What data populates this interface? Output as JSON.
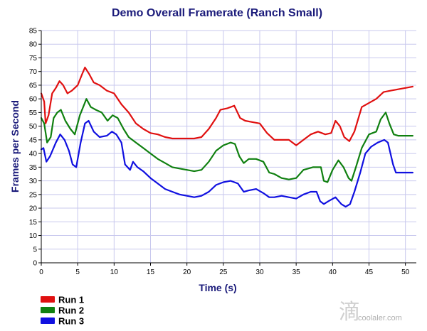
{
  "chart_data": {
    "type": "line",
    "title": "Demo Overall Framerate (Ranch Small)",
    "xlabel": "Time (s)",
    "ylabel": "Frames per Second",
    "xlim": [
      0,
      51.5
    ],
    "ylim": [
      0,
      85
    ],
    "x_ticks": [
      0,
      5,
      10,
      15,
      20,
      25,
      30,
      35,
      40,
      45,
      50
    ],
    "y_ticks": [
      0,
      5,
      10,
      15,
      20,
      25,
      30,
      35,
      40,
      45,
      50,
      55,
      60,
      65,
      70,
      75,
      80,
      85
    ],
    "grid": true,
    "legend_position": "bottom-left",
    "series": [
      {
        "name": "Run 1",
        "color": "#e01010",
        "points": [
          [
            0,
            62
          ],
          [
            0.4,
            59
          ],
          [
            0.6,
            51
          ],
          [
            1,
            54
          ],
          [
            1.5,
            62
          ],
          [
            2,
            64
          ],
          [
            2.5,
            66.5
          ],
          [
            3,
            65
          ],
          [
            3.6,
            62
          ],
          [
            4.2,
            63
          ],
          [
            5,
            65
          ],
          [
            5.6,
            69
          ],
          [
            6,
            71.5
          ],
          [
            6.6,
            69
          ],
          [
            7.2,
            66
          ],
          [
            8,
            65
          ],
          [
            9,
            63
          ],
          [
            10,
            62
          ],
          [
            11,
            58
          ],
          [
            12,
            55
          ],
          [
            13,
            51
          ],
          [
            14,
            49
          ],
          [
            15,
            47.5
          ],
          [
            16,
            47
          ],
          [
            17,
            46
          ],
          [
            18,
            45.5
          ],
          [
            19,
            45.5
          ],
          [
            20,
            45.5
          ],
          [
            21,
            45.5
          ],
          [
            22,
            46
          ],
          [
            23,
            49
          ],
          [
            24,
            53
          ],
          [
            24.6,
            56
          ],
          [
            25.5,
            56.5
          ],
          [
            26.5,
            57.5
          ],
          [
            27.3,
            53
          ],
          [
            28,
            52
          ],
          [
            29,
            51.5
          ],
          [
            30,
            51
          ],
          [
            31,
            47.5
          ],
          [
            32,
            45
          ],
          [
            33,
            45
          ],
          [
            34,
            45
          ],
          [
            35,
            43
          ],
          [
            36,
            45
          ],
          [
            37,
            47
          ],
          [
            38,
            48
          ],
          [
            39,
            47
          ],
          [
            39.8,
            47.5
          ],
          [
            40.4,
            52
          ],
          [
            41,
            50
          ],
          [
            41.6,
            46
          ],
          [
            42.3,
            44.5
          ],
          [
            43,
            48
          ],
          [
            44,
            57
          ],
          [
            45,
            58.5
          ],
          [
            46,
            60
          ],
          [
            47,
            62.5
          ],
          [
            48,
            63
          ],
          [
            49,
            63.5
          ],
          [
            50,
            64
          ],
          [
            51,
            64.5
          ]
        ]
      },
      {
        "name": "Run 2",
        "color": "#108010",
        "points": [
          [
            0,
            53
          ],
          [
            0.4,
            51
          ],
          [
            0.8,
            44
          ],
          [
            1.3,
            46
          ],
          [
            1.7,
            53
          ],
          [
            2.2,
            55
          ],
          [
            2.7,
            56
          ],
          [
            3.3,
            52
          ],
          [
            4,
            49
          ],
          [
            4.6,
            47
          ],
          [
            5.3,
            54
          ],
          [
            5.9,
            58
          ],
          [
            6.2,
            60
          ],
          [
            6.8,
            57
          ],
          [
            7.5,
            56
          ],
          [
            8.3,
            55
          ],
          [
            9.1,
            52
          ],
          [
            9.8,
            54
          ],
          [
            10.5,
            53
          ],
          [
            11.3,
            49
          ],
          [
            12,
            46
          ],
          [
            13,
            44
          ],
          [
            14,
            42
          ],
          [
            15,
            40
          ],
          [
            16,
            38
          ],
          [
            17,
            36.5
          ],
          [
            18,
            35
          ],
          [
            19,
            34.5
          ],
          [
            20,
            34
          ],
          [
            21,
            33.5
          ],
          [
            22,
            34
          ],
          [
            23,
            37
          ],
          [
            24,
            41
          ],
          [
            25,
            43
          ],
          [
            26,
            44
          ],
          [
            26.6,
            43.5
          ],
          [
            27.2,
            39
          ],
          [
            27.8,
            36.5
          ],
          [
            28.5,
            38
          ],
          [
            29.5,
            38
          ],
          [
            30.5,
            37
          ],
          [
            31.3,
            33
          ],
          [
            32,
            32.5
          ],
          [
            33,
            31
          ],
          [
            34,
            30.5
          ],
          [
            35,
            31
          ],
          [
            36,
            34
          ],
          [
            37.3,
            35
          ],
          [
            38.4,
            35
          ],
          [
            38.8,
            30
          ],
          [
            39.3,
            29.5
          ],
          [
            40,
            34
          ],
          [
            40.8,
            37.5
          ],
          [
            41.5,
            35
          ],
          [
            42.2,
            31
          ],
          [
            42.6,
            30
          ],
          [
            43.2,
            35
          ],
          [
            44,
            42
          ],
          [
            45,
            47
          ],
          [
            46,
            48
          ],
          [
            46.6,
            52.5
          ],
          [
            47.3,
            55
          ],
          [
            47.8,
            51
          ],
          [
            48.4,
            47
          ],
          [
            49,
            46.5
          ],
          [
            50,
            46.5
          ],
          [
            51,
            46.5
          ]
        ]
      },
      {
        "name": "Run 3",
        "color": "#1010e0",
        "points": [
          [
            0,
            41.5
          ],
          [
            0.3,
            42
          ],
          [
            0.7,
            37
          ],
          [
            1.2,
            39
          ],
          [
            2,
            44
          ],
          [
            2.6,
            47
          ],
          [
            3.2,
            45
          ],
          [
            3.8,
            41
          ],
          [
            4.3,
            36
          ],
          [
            4.8,
            35
          ],
          [
            5.4,
            44
          ],
          [
            6,
            51
          ],
          [
            6.5,
            52
          ],
          [
            7.2,
            48
          ],
          [
            8,
            46
          ],
          [
            9,
            46.5
          ],
          [
            9.7,
            48
          ],
          [
            10.3,
            47
          ],
          [
            11,
            44
          ],
          [
            11.5,
            36
          ],
          [
            12.2,
            34
          ],
          [
            12.6,
            37
          ],
          [
            13.2,
            35
          ],
          [
            14,
            33.5
          ],
          [
            15,
            31
          ],
          [
            16,
            29
          ],
          [
            17,
            27
          ],
          [
            18,
            26
          ],
          [
            19,
            25
          ],
          [
            20,
            24.5
          ],
          [
            21,
            24
          ],
          [
            22,
            24.5
          ],
          [
            23,
            26
          ],
          [
            24,
            28.5
          ],
          [
            25,
            29.5
          ],
          [
            26,
            30
          ],
          [
            27,
            29
          ],
          [
            27.8,
            26
          ],
          [
            28.5,
            26.5
          ],
          [
            29.5,
            27
          ],
          [
            30.5,
            25.5
          ],
          [
            31.3,
            24
          ],
          [
            32,
            24
          ],
          [
            33,
            24.5
          ],
          [
            34,
            24
          ],
          [
            35,
            23.5
          ],
          [
            36,
            25
          ],
          [
            37,
            26
          ],
          [
            37.8,
            26
          ],
          [
            38.3,
            22.5
          ],
          [
            38.8,
            21.5
          ],
          [
            39.4,
            22.5
          ],
          [
            40.4,
            24
          ],
          [
            41.2,
            21.5
          ],
          [
            41.8,
            20.5
          ],
          [
            42.4,
            21.5
          ],
          [
            43,
            26
          ],
          [
            43.8,
            33
          ],
          [
            44.5,
            40
          ],
          [
            45.3,
            42.5
          ],
          [
            46.2,
            44
          ],
          [
            47.1,
            45
          ],
          [
            47.6,
            44
          ],
          [
            48.3,
            36
          ],
          [
            48.7,
            33
          ],
          [
            49.5,
            33
          ],
          [
            50.5,
            33
          ],
          [
            51,
            33
          ]
        ]
      }
    ]
  },
  "watermark": {
    "glyph": "滴",
    "text": "coolaler.com"
  }
}
